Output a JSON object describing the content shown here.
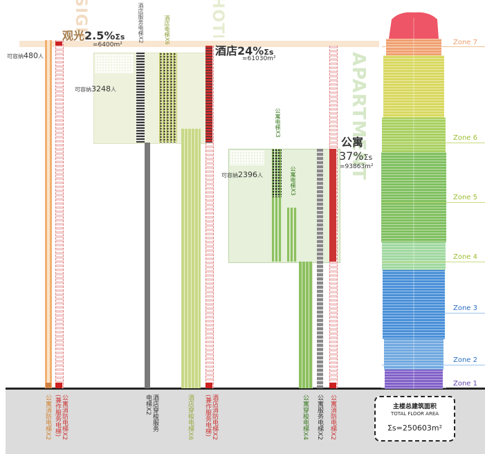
{
  "sections": {
    "sightseeing": {
      "english": "SIGHTSEEING",
      "pct_label": "观光",
      "pct_value": "2.5%",
      "sigma": "Σs",
      "area": "=6400m²",
      "capacity_prefix": "可容纳",
      "capacity_value": "480",
      "capacity_unit": "人"
    },
    "hotel": {
      "english": "HOTEL",
      "pct_label": "酒店",
      "pct_value": "24%",
      "sigma": "Σs",
      "area": "=61030m²",
      "capacity_prefix": "可容纳",
      "capacity_value": "3248",
      "capacity_unit": "人"
    },
    "apartment": {
      "english": "APARTMENT",
      "pct_label": "公寓",
      "pct_value": "37%",
      "sigma": "Σs",
      "area": "=93863m²",
      "capacity_prefix": "可容纳",
      "capacity_value": "2396",
      "capacity_unit": "人"
    }
  },
  "elevator_labels_top": {
    "hotel_service": "酒店服务电梯X2",
    "hotel_passenger": "酒店电梯X6",
    "apartment_passenger": "公寓电梯X3",
    "apartment_passenger_2": "公寓电梯X3"
  },
  "elevator_labels_bottom": {
    "apt_fire": "公寓消防电梯X2",
    "apt_fire_service": "公寓消防电梯X2\n(兼作服务电梯)",
    "hotel_shuttle_service": "酒店穿梭服务\n电梯X2",
    "hotel_shuttle": "酒店穿梭电梯X6",
    "hotel_fire": "酒店消防电梯X2\n(兼作服务电梯)",
    "apt_shuttle": "公寓穿梭电梯X4",
    "apt_service": "公寓服务电梯X2",
    "apt_fire_2": "公寓消防电梯X2"
  },
  "zones": [
    "Zone 7",
    "Zone 6",
    "Zone 5",
    "Zone 4",
    "Zone 3",
    "Zone 2",
    "Zone 1"
  ],
  "total": {
    "cn": "主楼总建筑面积",
    "en": "TOTAL FLOOR AREA",
    "value": "Σs=250603m²"
  },
  "colors": {
    "sight": "#f0b070",
    "hotel": "#c8d888",
    "hotel_fire": "#cc3333",
    "apartment": "#8dc060",
    "service": "#777777",
    "zone_label": "#8fbf30"
  }
}
